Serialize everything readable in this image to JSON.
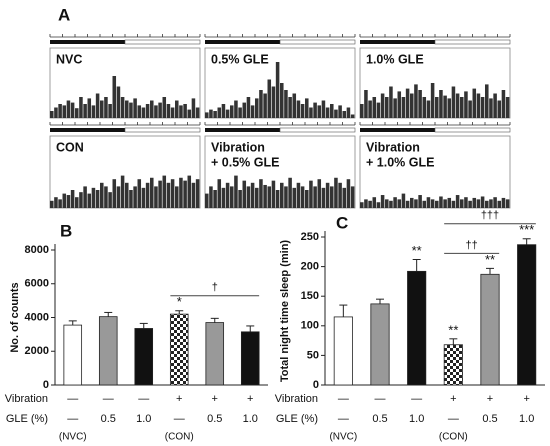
{
  "panel_labels": [
    "A",
    "B",
    "C"
  ],
  "chart_data": [
    {
      "type": "actogram",
      "title": [
        "NVC"
      ],
      "ylim": [
        0,
        100
      ],
      "color": "#333333",
      "values": [
        10,
        15,
        20,
        18,
        25,
        22,
        14,
        30,
        20,
        28,
        18,
        35,
        25,
        30,
        20,
        60,
        45,
        30,
        25,
        22,
        28,
        18,
        15,
        20,
        25,
        18,
        22,
        30,
        20,
        15,
        25,
        18,
        20,
        12,
        28,
        15
      ]
    },
    {
      "type": "actogram",
      "title": [
        "0.5% GLE"
      ],
      "ylim": [
        0,
        100
      ],
      "color": "#333333",
      "values": [
        8,
        12,
        10,
        15,
        20,
        12,
        18,
        25,
        15,
        22,
        30,
        18,
        28,
        40,
        35,
        55,
        45,
        80,
        50,
        40,
        30,
        35,
        25,
        20,
        28,
        15,
        22,
        18,
        25,
        15,
        20,
        12,
        18,
        10,
        15,
        5
      ]
    },
    {
      "type": "actogram",
      "title": [
        "1.0% GLE"
      ],
      "ylim": [
        0,
        100
      ],
      "color": "#333333",
      "values": [
        20,
        40,
        25,
        30,
        22,
        35,
        30,
        45,
        28,
        38,
        30,
        42,
        35,
        48,
        40,
        30,
        25,
        50,
        30,
        40,
        32,
        28,
        45,
        35,
        30,
        38,
        25,
        42,
        35,
        30,
        48,
        28,
        35,
        25,
        40,
        30
      ]
    },
    {
      "type": "actogram",
      "title": [
        "CON"
      ],
      "ylim": [
        0,
        100
      ],
      "color": "#333333",
      "values": [
        10,
        15,
        12,
        20,
        18,
        25,
        15,
        22,
        30,
        20,
        28,
        25,
        35,
        30,
        22,
        40,
        30,
        45,
        35,
        25,
        30,
        40,
        28,
        35,
        42,
        30,
        38,
        45,
        35,
        40,
        30,
        42,
        38,
        45,
        35,
        40
      ]
    },
    {
      "type": "actogram",
      "title": [
        "Vibration",
        "+ 0.5% GLE"
      ],
      "ylim": [
        0,
        100
      ],
      "color": "#333333",
      "values": [
        20,
        30,
        25,
        40,
        28,
        35,
        30,
        45,
        25,
        38,
        30,
        35,
        28,
        40,
        32,
        30,
        38,
        25,
        35,
        30,
        42,
        28,
        35,
        30,
        25,
        38,
        30,
        40,
        28,
        35,
        30,
        42,
        35,
        28,
        40,
        30
      ]
    },
    {
      "type": "actogram",
      "title": [
        "Vibration",
        "+ 1.0% GLE"
      ],
      "ylim": [
        0,
        100
      ],
      "color": "#333333",
      "values": [
        8,
        12,
        10,
        15,
        8,
        18,
        12,
        10,
        15,
        12,
        20,
        10,
        14,
        12,
        18,
        10,
        15,
        12,
        10,
        16,
        12,
        14,
        10,
        18,
        12,
        15,
        10,
        14,
        12,
        16,
        10,
        12,
        15,
        10,
        14,
        12
      ]
    },
    {
      "type": "bar",
      "ylabel": "No. of counts",
      "ylim": [
        0,
        8000
      ],
      "yticks": [
        0,
        2000,
        4000,
        6000,
        8000
      ],
      "values": [
        3550,
        4050,
        3350,
        4200,
        3700,
        3150
      ],
      "errors": [
        250,
        250,
        300,
        200,
        250,
        350
      ],
      "colors": [
        "#ffffff",
        "#999999",
        "#111111",
        "checker",
        "#999999",
        "#111111"
      ],
      "significance": [
        null,
        null,
        null,
        "*",
        null,
        null
      ],
      "brackets": [
        {
          "text": "†",
          "span": [
            3,
            5
          ]
        }
      ],
      "rows": [
        {
          "label": "Vibration",
          "values": [
            "—",
            "—",
            "—",
            "+",
            "+",
            "+"
          ]
        },
        {
          "label": "GLE (%)",
          "values": [
            "—",
            "0.5",
            "1.0",
            "—",
            "0.5",
            "1.0"
          ]
        }
      ],
      "notes": [
        "(NVC)",
        null,
        null,
        "(CON)",
        null,
        null
      ]
    },
    {
      "type": "bar",
      "ylabel": "Total night time sleep (min)",
      "ylim": [
        0,
        250
      ],
      "yticks": [
        0,
        50,
        100,
        150,
        200,
        250
      ],
      "values": [
        115,
        137,
        192,
        68,
        187,
        237
      ],
      "errors": [
        20,
        8,
        20,
        10,
        10,
        10
      ],
      "colors": [
        "#ffffff",
        "#999999",
        "#111111",
        "checker",
        "#999999",
        "#111111"
      ],
      "significance": [
        null,
        null,
        "**",
        "**",
        "**",
        "***"
      ],
      "brackets": [
        {
          "text": "††",
          "span": [
            3,
            4
          ]
        },
        {
          "text": "†††",
          "span": [
            3,
            5
          ]
        }
      ],
      "rows": [
        {
          "label": "Vibration",
          "values": [
            "—",
            "—",
            "—",
            "+",
            "+",
            "+"
          ]
        },
        {
          "label": "GLE (%)",
          "values": [
            "—",
            "0.5",
            "1.0",
            "—",
            "0.5",
            "1.0"
          ]
        }
      ],
      "notes": [
        "(NVC)",
        null,
        null,
        "(CON)",
        null,
        null
      ]
    }
  ]
}
